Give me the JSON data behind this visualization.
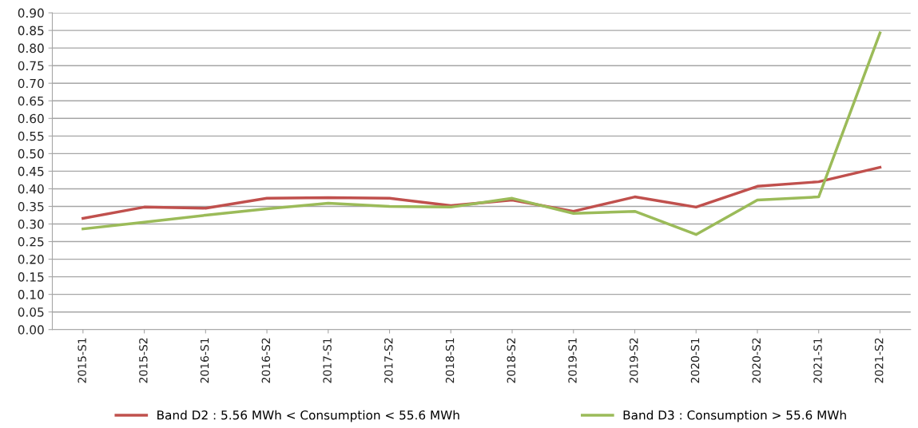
{
  "chart_data": {
    "type": "line",
    "categories": [
      "2015-S1",
      "2015-S2",
      "2016-S1",
      "2016-S2",
      "2017-S1",
      "2017-S2",
      "2018-S1",
      "2018-S2",
      "2019-S1",
      "2019-S2",
      "2020-S1",
      "2020-S2",
      "2021-S1",
      "2021-S2"
    ],
    "series": [
      {
        "name": "Band D2 : 5.56 MWh < Consumption < 55.6 MWh",
        "color": "#c0504d",
        "values": [
          0.316,
          0.348,
          0.345,
          0.373,
          0.375,
          0.373,
          0.352,
          0.368,
          0.336,
          0.377,
          0.348,
          0.407,
          0.42,
          0.461
        ]
      },
      {
        "name": "Band D3 : Consumption > 55.6 MWh",
        "color": "#9bbb59",
        "values": [
          0.286,
          0.305,
          0.325,
          0.343,
          0.359,
          0.35,
          0.348,
          0.373,
          0.33,
          0.336,
          0.27,
          0.368,
          0.377,
          0.843
        ]
      }
    ],
    "ylim": [
      0,
      0.9
    ],
    "yticks": [
      {
        "value": 0,
        "label": "0.00"
      },
      {
        "value": 0.05,
        "label": "0.05"
      },
      {
        "value": 0.1,
        "label": "0.10"
      },
      {
        "value": 0.15,
        "label": "0.15"
      },
      {
        "value": 0.2,
        "label": "0.20"
      },
      {
        "value": 0.25,
        "label": "0.25"
      },
      {
        "value": 0.3,
        "label": "0.30"
      },
      {
        "value": 0.35,
        "label": "0.35"
      },
      {
        "value": 0.4,
        "label": "0.40"
      },
      {
        "value": 0.45,
        "label": "0.45"
      },
      {
        "value": 0.5,
        "label": "0.50"
      },
      {
        "value": 0.55,
        "label": "0.55"
      },
      {
        "value": 0.6,
        "label": "0.60"
      },
      {
        "value": 0.65,
        "label": "0.65"
      },
      {
        "value": 0.7,
        "label": "0.70"
      },
      {
        "value": 0.75,
        "label": "0.75"
      },
      {
        "value": 0.8,
        "label": "0.80"
      },
      {
        "value": 0.85,
        "label": "0.85"
      },
      {
        "value": 0.9,
        "label": "0.90"
      }
    ],
    "grid": "y",
    "legend": "bottom",
    "marker": "none",
    "line_style": "solid"
  }
}
